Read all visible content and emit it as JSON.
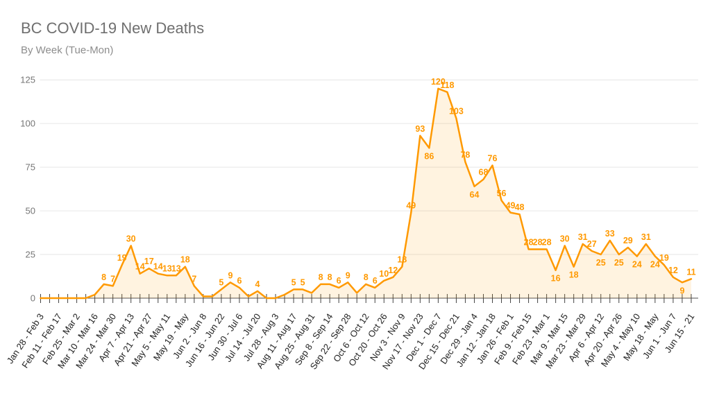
{
  "header": {
    "title": "BC COVID-19 New Deaths",
    "subtitle": "By Week (Tue-Mon)"
  },
  "colors": {
    "series_line": "#FF9900",
    "series_fill": "rgba(255,153,0,0.12)",
    "annotation_text": "#FF9900",
    "gridline": "#E6E6E6",
    "axis_line": "#4d4d4d",
    "tick_mark": "#424242",
    "x_label_text": "#222222",
    "y_label_text": "#757575",
    "title_text": "#6f6f6f",
    "subtitle_text": "#8d8d8d"
  },
  "chart_data": {
    "type": "area",
    "title": "BC COVID-19 New Deaths",
    "subtitle": "By Week (Tue-Mon)",
    "legend": "none",
    "grid": true,
    "ylim": [
      0,
      125
    ],
    "y_ticks": [
      0,
      25,
      50,
      75,
      100,
      125
    ],
    "x_label_every": 2,
    "x_tick_labels": [
      "Jan 28 - Feb 3",
      "Feb 11 - Feb 17",
      "Feb 25 - Mar 2",
      "Mar 10 - Mar 16",
      "Mar 24 - Mar 30",
      "Apr 7 - Apr 13",
      "Apr 21 - Apr 27",
      "May 5 - May 11",
      "May 19 - May",
      "Jun 2 - Jun 8",
      "Jun 16 - Jun 22",
      "Jun 30 - Jul 6",
      "Jul 14 - Jul 20",
      "Jul 28 - Aug 3",
      "Aug 11 - Aug 17",
      "Aug 25 - Aug 31",
      "Sep 8 - Sep 14",
      "Sep 22 - Sep 28",
      "Oct 6 - Oct 12",
      "Oct 20 - Oct 26",
      "Nov 3 - Nov 9",
      "Nov 17 - Nov 23",
      "Dec 1 - Dec 7",
      "Dec 15 - Dec 21",
      "Dec 29 - Jan 4",
      "Jan 12 - Jan 18",
      "Jan 26 - Feb 1",
      "Feb 9 - Feb 15",
      "Feb 23 - Mar 1",
      "Mar 9 - Mar 15",
      "Mar 23 - Mar 29",
      "Apr 6 - Apr 12",
      "Apr 20 - Apr 26",
      "May 4 - May 10",
      "May 18 - May",
      "Jun 1 - Jun 7",
      "Jun 15 - 21"
    ],
    "values": [
      0,
      0,
      0,
      0,
      0,
      0,
      2,
      8,
      7,
      19,
      30,
      14,
      17,
      14,
      13,
      13,
      18,
      7,
      1,
      1,
      5,
      9,
      6,
      1,
      4,
      0,
      0,
      2,
      5,
      5,
      3,
      8,
      8,
      6,
      9,
      3,
      8,
      6,
      10,
      12,
      18,
      49,
      93,
      86,
      120,
      118,
      103,
      78,
      64,
      68,
      76,
      56,
      49,
      48,
      28,
      28,
      28,
      16,
      30,
      18,
      31,
      27,
      25,
      33,
      25,
      29,
      24,
      31,
      24,
      19,
      12,
      9,
      11
    ],
    "annotations": [
      null,
      null,
      null,
      null,
      null,
      null,
      null,
      8,
      7,
      19,
      30,
      14,
      17,
      14,
      13,
      13,
      18,
      7,
      null,
      null,
      5,
      9,
      6,
      null,
      4,
      null,
      null,
      null,
      5,
      5,
      null,
      8,
      8,
      6,
      9,
      null,
      8,
      6,
      10,
      12,
      18,
      49,
      93,
      86,
      120,
      118,
      103,
      78,
      64,
      68,
      76,
      56,
      49,
      48,
      28,
      28,
      28,
      16,
      30,
      18,
      31,
      27,
      25,
      33,
      25,
      29,
      24,
      31,
      24,
      19,
      12,
      9,
      11
    ]
  }
}
